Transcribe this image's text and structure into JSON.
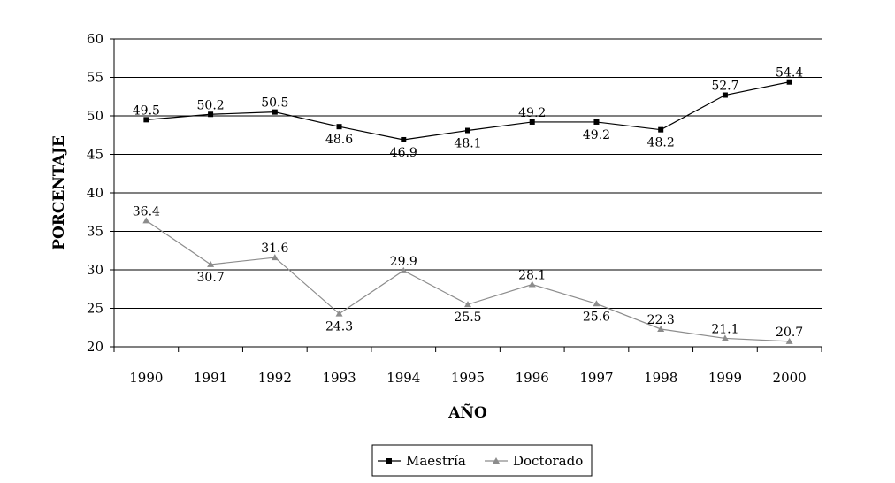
{
  "chart_data": {
    "type": "line",
    "title": "",
    "xlabel": "AÑO",
    "ylabel": "PORCENTAJE",
    "categories": [
      "1990",
      "1991",
      "1992",
      "1993",
      "1994",
      "1995",
      "1996",
      "1997",
      "1998",
      "1999",
      "2000"
    ],
    "ylim": [
      20,
      60
    ],
    "yticks": [
      20,
      25,
      30,
      35,
      40,
      45,
      50,
      55,
      60
    ],
    "grid": true,
    "legend_position": "bottom",
    "series": [
      {
        "name": "Maestría",
        "values": [
          49.5,
          50.2,
          50.5,
          48.6,
          46.9,
          48.1,
          49.2,
          49.2,
          48.2,
          52.7,
          54.4
        ],
        "labels": [
          "49.5",
          "50.2",
          "50.5",
          "48.6",
          "46.9",
          "48.1",
          "49.2",
          "49.2",
          "48.2",
          "52.7",
          "54.4"
        ],
        "label_side": [
          "above",
          "above",
          "above",
          "below",
          "below",
          "below",
          "above",
          "below",
          "below",
          "above",
          "above"
        ],
        "color": "#000000",
        "marker": "square"
      },
      {
        "name": "Doctorado",
        "values": [
          36.4,
          30.7,
          31.6,
          24.3,
          29.9,
          25.5,
          28.1,
          25.6,
          22.3,
          21.1,
          20.7
        ],
        "labels": [
          "36.4",
          "30.7",
          "31.6",
          "24.3",
          "29.9",
          "25.5",
          "28.1",
          "25.6",
          "22.3",
          "21.1",
          "20.7"
        ],
        "label_side": [
          "above",
          "below",
          "above",
          "below",
          "above",
          "below",
          "above",
          "below",
          "above",
          "above",
          "above"
        ],
        "color": "#8c8c8c",
        "marker": "triangle"
      }
    ]
  }
}
